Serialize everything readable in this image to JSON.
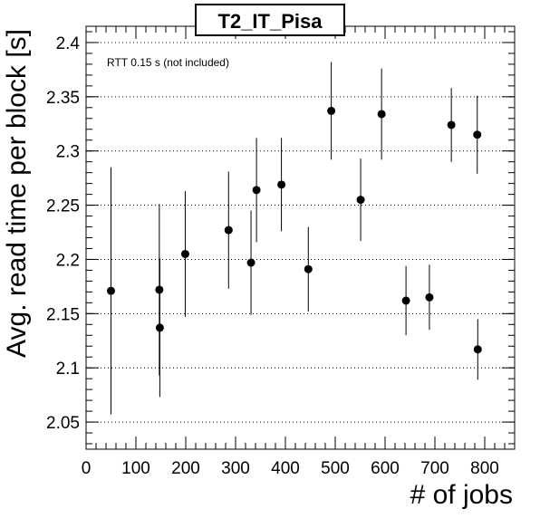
{
  "chart_data": {
    "type": "scatter",
    "title": "T2_IT_Pisa",
    "annotation": "RTT 0.15 s (not included)",
    "xlabel": "# of jobs",
    "ylabel": "Avg. read time per block [s]",
    "xlim": [
      0,
      860
    ],
    "ylim": [
      2.025,
      2.415
    ],
    "x_ticks": [
      0,
      100,
      200,
      300,
      400,
      500,
      600,
      700,
      800
    ],
    "y_ticks": [
      2.05,
      2.1,
      2.15,
      2.2,
      2.25,
      2.3,
      2.35,
      2.4
    ],
    "y_tick_labels": [
      "2.05",
      "2.1",
      "2.15",
      "2.2",
      "2.25",
      "2.3",
      "2.35",
      "2.4"
    ],
    "grid": "horizontal",
    "marker_color": "#000000",
    "points": [
      {
        "x": 50,
        "y": 2.171,
        "err": 0.114
      },
      {
        "x": 147,
        "y": 2.172,
        "err": 0.079
      },
      {
        "x": 148,
        "y": 2.137,
        "err": 0.064
      },
      {
        "x": 199,
        "y": 2.205,
        "err": 0.058
      },
      {
        "x": 286,
        "y": 2.227,
        "err": 0.054
      },
      {
        "x": 331,
        "y": 2.197,
        "err": 0.048
      },
      {
        "x": 342,
        "y": 2.264,
        "err": 0.048
      },
      {
        "x": 392,
        "y": 2.269,
        "err": 0.043
      },
      {
        "x": 446,
        "y": 2.191,
        "err": 0.039
      },
      {
        "x": 492,
        "y": 2.337,
        "err": 0.045
      },
      {
        "x": 551,
        "y": 2.255,
        "err": 0.038
      },
      {
        "x": 593,
        "y": 2.334,
        "err": 0.042
      },
      {
        "x": 642,
        "y": 2.162,
        "err": 0.032
      },
      {
        "x": 689,
        "y": 2.165,
        "err": 0.03
      },
      {
        "x": 733,
        "y": 2.324,
        "err": 0.034
      },
      {
        "x": 785,
        "y": 2.315,
        "err": 0.036
      },
      {
        "x": 786,
        "y": 2.117,
        "err": 0.028
      }
    ]
  }
}
